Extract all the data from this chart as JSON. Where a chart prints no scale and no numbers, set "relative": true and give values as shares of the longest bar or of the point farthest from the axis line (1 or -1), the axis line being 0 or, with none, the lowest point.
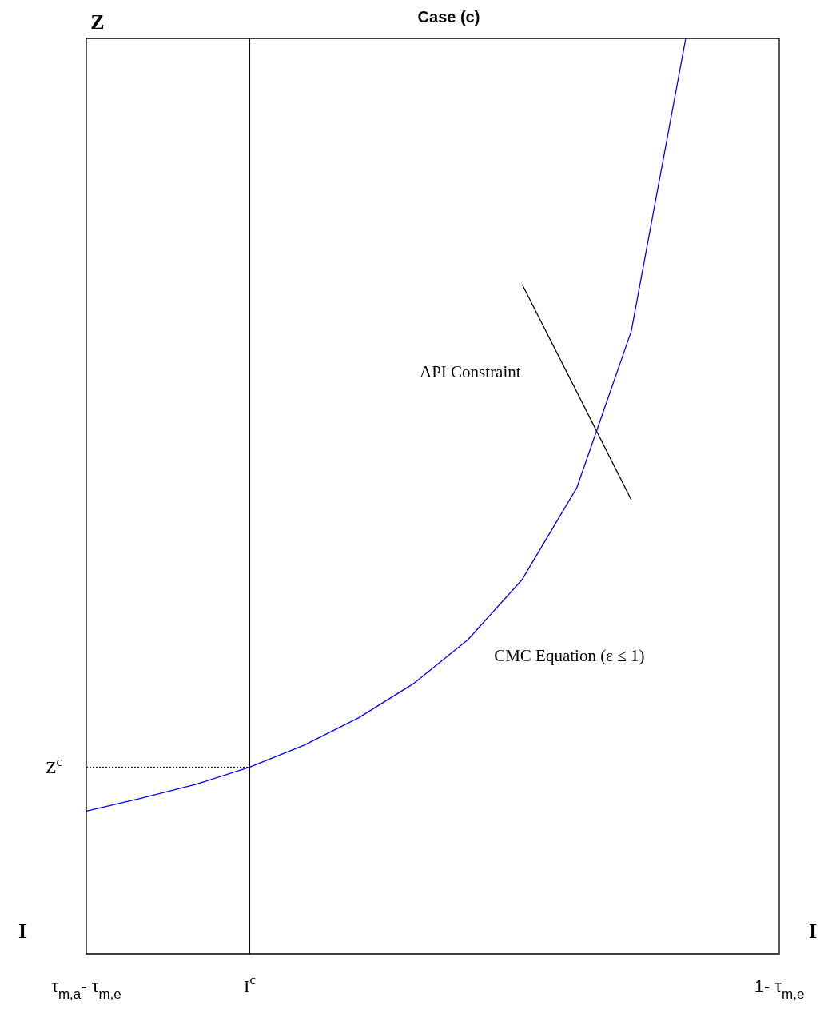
{
  "chart_data": {
    "type": "line",
    "title": "Case (c)",
    "xlabel": "I",
    "ylabel": "Z",
    "relative": true,
    "legend": false,
    "marker": "none",
    "categories": [
      "τ$_{m,a}$- τ$_{m,e}$",
      null,
      null,
      "I$^{c}$",
      null,
      null,
      null,
      null,
      null,
      null,
      null,
      null
    ],
    "series": [
      {
        "color": "#0000ff",
        "values": [
          0.156,
          0.17,
          0.185,
          0.204,
          0.228,
          0.258,
          0.295,
          0.343,
          0.409,
          0.509,
          0.68,
          1
        ]
      },
      {
        "color": "#000000",
        "values": [
          null,
          null,
          null,
          null,
          null,
          null,
          null,
          null,
          0.731,
          0.614,
          0.496,
          null
        ]
      }
    ],
    "ref_lines": [
      {
        "axis": "x",
        "value": "I$^{c}$",
        "label": null,
        "color": "#000000",
        "line_style": "solid"
      },
      {
        "axis": "y",
        "value": 0.204,
        "label": "Z$^{c}$",
        "color": "#000000",
        "line_style": "dotted"
      }
    ],
    "annotations": [
      "API Constraint",
      "CMC Equation (ε ≤ 1)",
      "1- τ$_{m,e}$"
    ]
  }
}
